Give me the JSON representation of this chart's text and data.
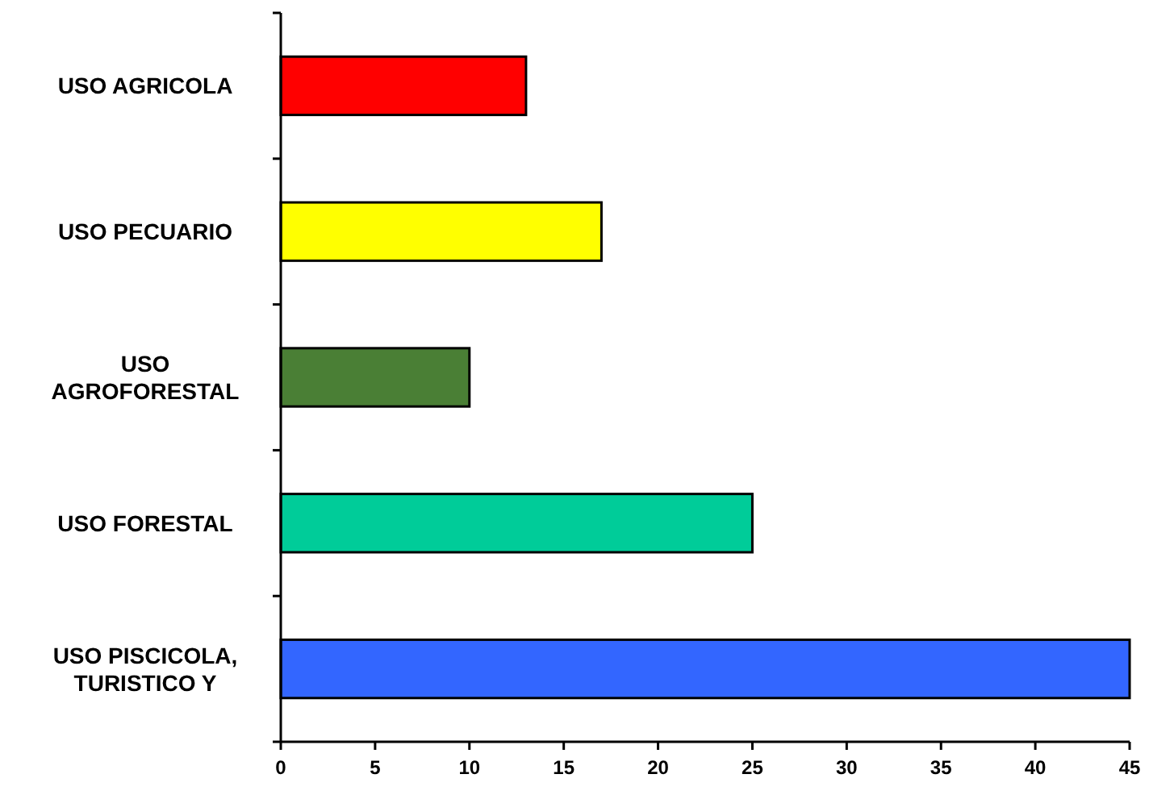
{
  "chart_data": {
    "type": "bar",
    "orientation": "horizontal",
    "categories": [
      "USO AGRICOLA",
      "USO PECUARIO",
      "USO AGROFORESTAL",
      "USO FORESTAL",
      "USO PISCICOLA, TURISTICO Y"
    ],
    "values": [
      13,
      17,
      10,
      25,
      45
    ],
    "colors": [
      "#ff0000",
      "#ffff00",
      "#4a7f35",
      "#00cc99",
      "#3366ff"
    ],
    "xlim": [
      0,
      45
    ],
    "xticks": [
      0,
      5,
      10,
      15,
      20,
      25,
      30,
      35,
      40,
      45
    ]
  }
}
